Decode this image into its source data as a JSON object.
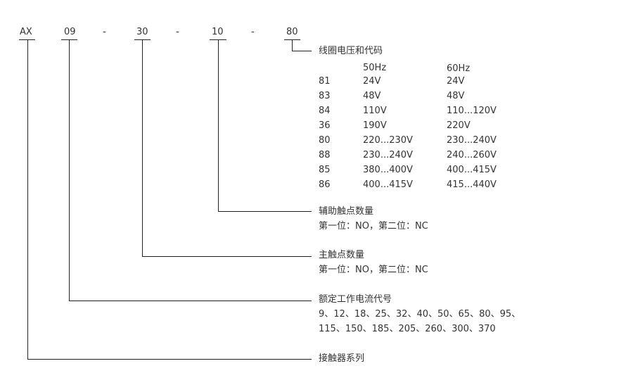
{
  "code": {
    "series": "AX",
    "current": "09",
    "main": "30",
    "aux": "10",
    "coil": "80",
    "sep": "-"
  },
  "coil": {
    "title": "线圈电压和代码",
    "col50": "50Hz",
    "col60": "60Hz",
    "rows": [
      [
        "81",
        "24V",
        "24V"
      ],
      [
        "83",
        "48V",
        "48V"
      ],
      [
        "84",
        "110V",
        "110...120V"
      ],
      [
        "36",
        "190V",
        "220V"
      ],
      [
        "80",
        "220...230V",
        "230...240V"
      ],
      [
        "88",
        "230...240V",
        "240...260V"
      ],
      [
        "85",
        "380...400V",
        "400...415V"
      ],
      [
        "86",
        "400...415V",
        "415...440V"
      ]
    ]
  },
  "aux": {
    "title": "辅助触点数量",
    "desc": "第一位：NO，第二位：NC"
  },
  "main": {
    "title": "主触点数量",
    "desc": "第一位：NO，第二位：NC"
  },
  "current": {
    "title": "额定工作电流代号",
    "line1": "9、12、18、25、32、40、50、65、80、95、",
    "line2": "115、150、185、205、260、300、370"
  },
  "series": {
    "title": "接触器系列"
  }
}
